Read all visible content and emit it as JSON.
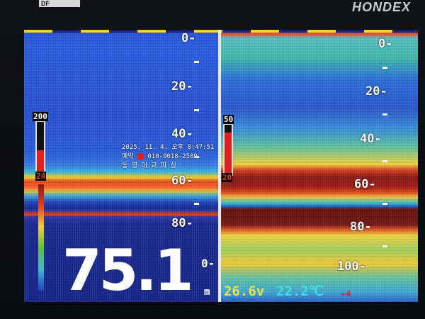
{
  "device": {
    "brand": "HONDEX",
    "badge": "DF"
  },
  "left_panel": {
    "depth_labels": [
      "0-",
      "20-",
      "40-",
      "60-",
      "80-"
    ],
    "gain": {
      "max": "200",
      "min": "24",
      "level": 0.45
    },
    "depth_readout": "75.1",
    "depth_unit": "m",
    "depth_sub": "0-"
  },
  "right_panel": {
    "depth_labels": [
      "0-",
      "20-",
      "40-",
      "60-",
      "80-",
      "100-"
    ],
    "gain": {
      "max": "50",
      "min": "20",
      "level": 0.85
    }
  },
  "overlay": {
    "datetime": "2025. 11. 4. 오후 8:47:51",
    "phone_label": "예약",
    "phone": "010-9018-2589",
    "name": "동 영 대 교 피 싱"
  },
  "status": {
    "voltage": "26.6v",
    "water_temp": "22.2℃",
    "indicator": "←4"
  },
  "colors": {
    "deep_echo": "#8a1a18",
    "strong_echo": "#e04020",
    "mid_echo": "#f0d040",
    "weak_echo": "#40b8d0",
    "background": "#1c2a9a",
    "voltage": "#f0e040",
    "temperature": "#40e0e0"
  }
}
